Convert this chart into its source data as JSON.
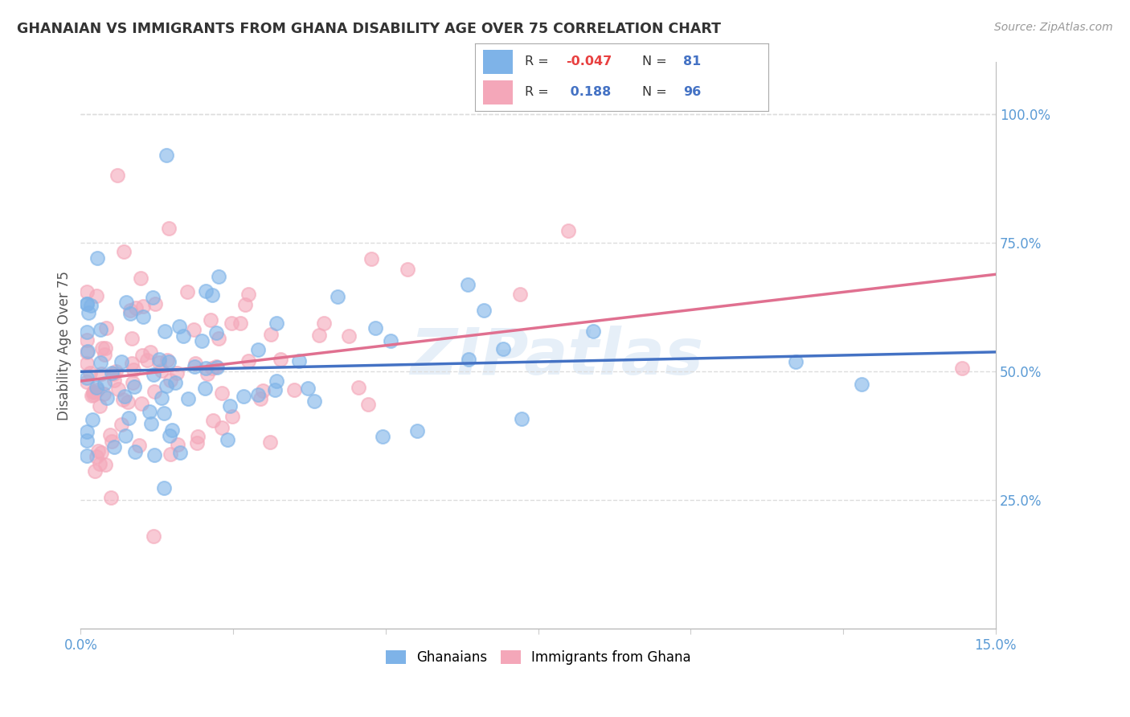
{
  "title": "GHANAIAN VS IMMIGRANTS FROM GHANA DISABILITY AGE OVER 75 CORRELATION CHART",
  "source": "Source: ZipAtlas.com",
  "ylabel": "Disability Age Over 75",
  "color_blue": "#7EB3E8",
  "color_pink": "#F4A7B9",
  "color_blue_dark": "#4472C4",
  "color_pink_dark": "#E07090",
  "watermark": "ZIPatlas",
  "legend_r1_label": "R = ",
  "legend_r1_val": "-0.047",
  "legend_n1_label": "N = ",
  "legend_n1_val": "81",
  "legend_r2_label": "R = ",
  "legend_r2_val": "0.188",
  "legend_n2_label": "N = ",
  "legend_n2_val": "96",
  "r_color_neg": "#E84040",
  "r_color_pos": "#4472C4",
  "n_color": "#4472C4",
  "title_color": "#333333",
  "source_color": "#999999",
  "ylabel_color": "#555555",
  "tick_color": "#5B9BD5",
  "grid_color": "#DDDDDD",
  "xlim": [
    0.0,
    0.15
  ],
  "ylim": [
    0.0,
    1.1
  ],
  "yticks": [
    0.25,
    0.5,
    0.75,
    1.0
  ],
  "ytick_labels": [
    "25.0%",
    "50.0%",
    "75.0%",
    "100.0%"
  ]
}
